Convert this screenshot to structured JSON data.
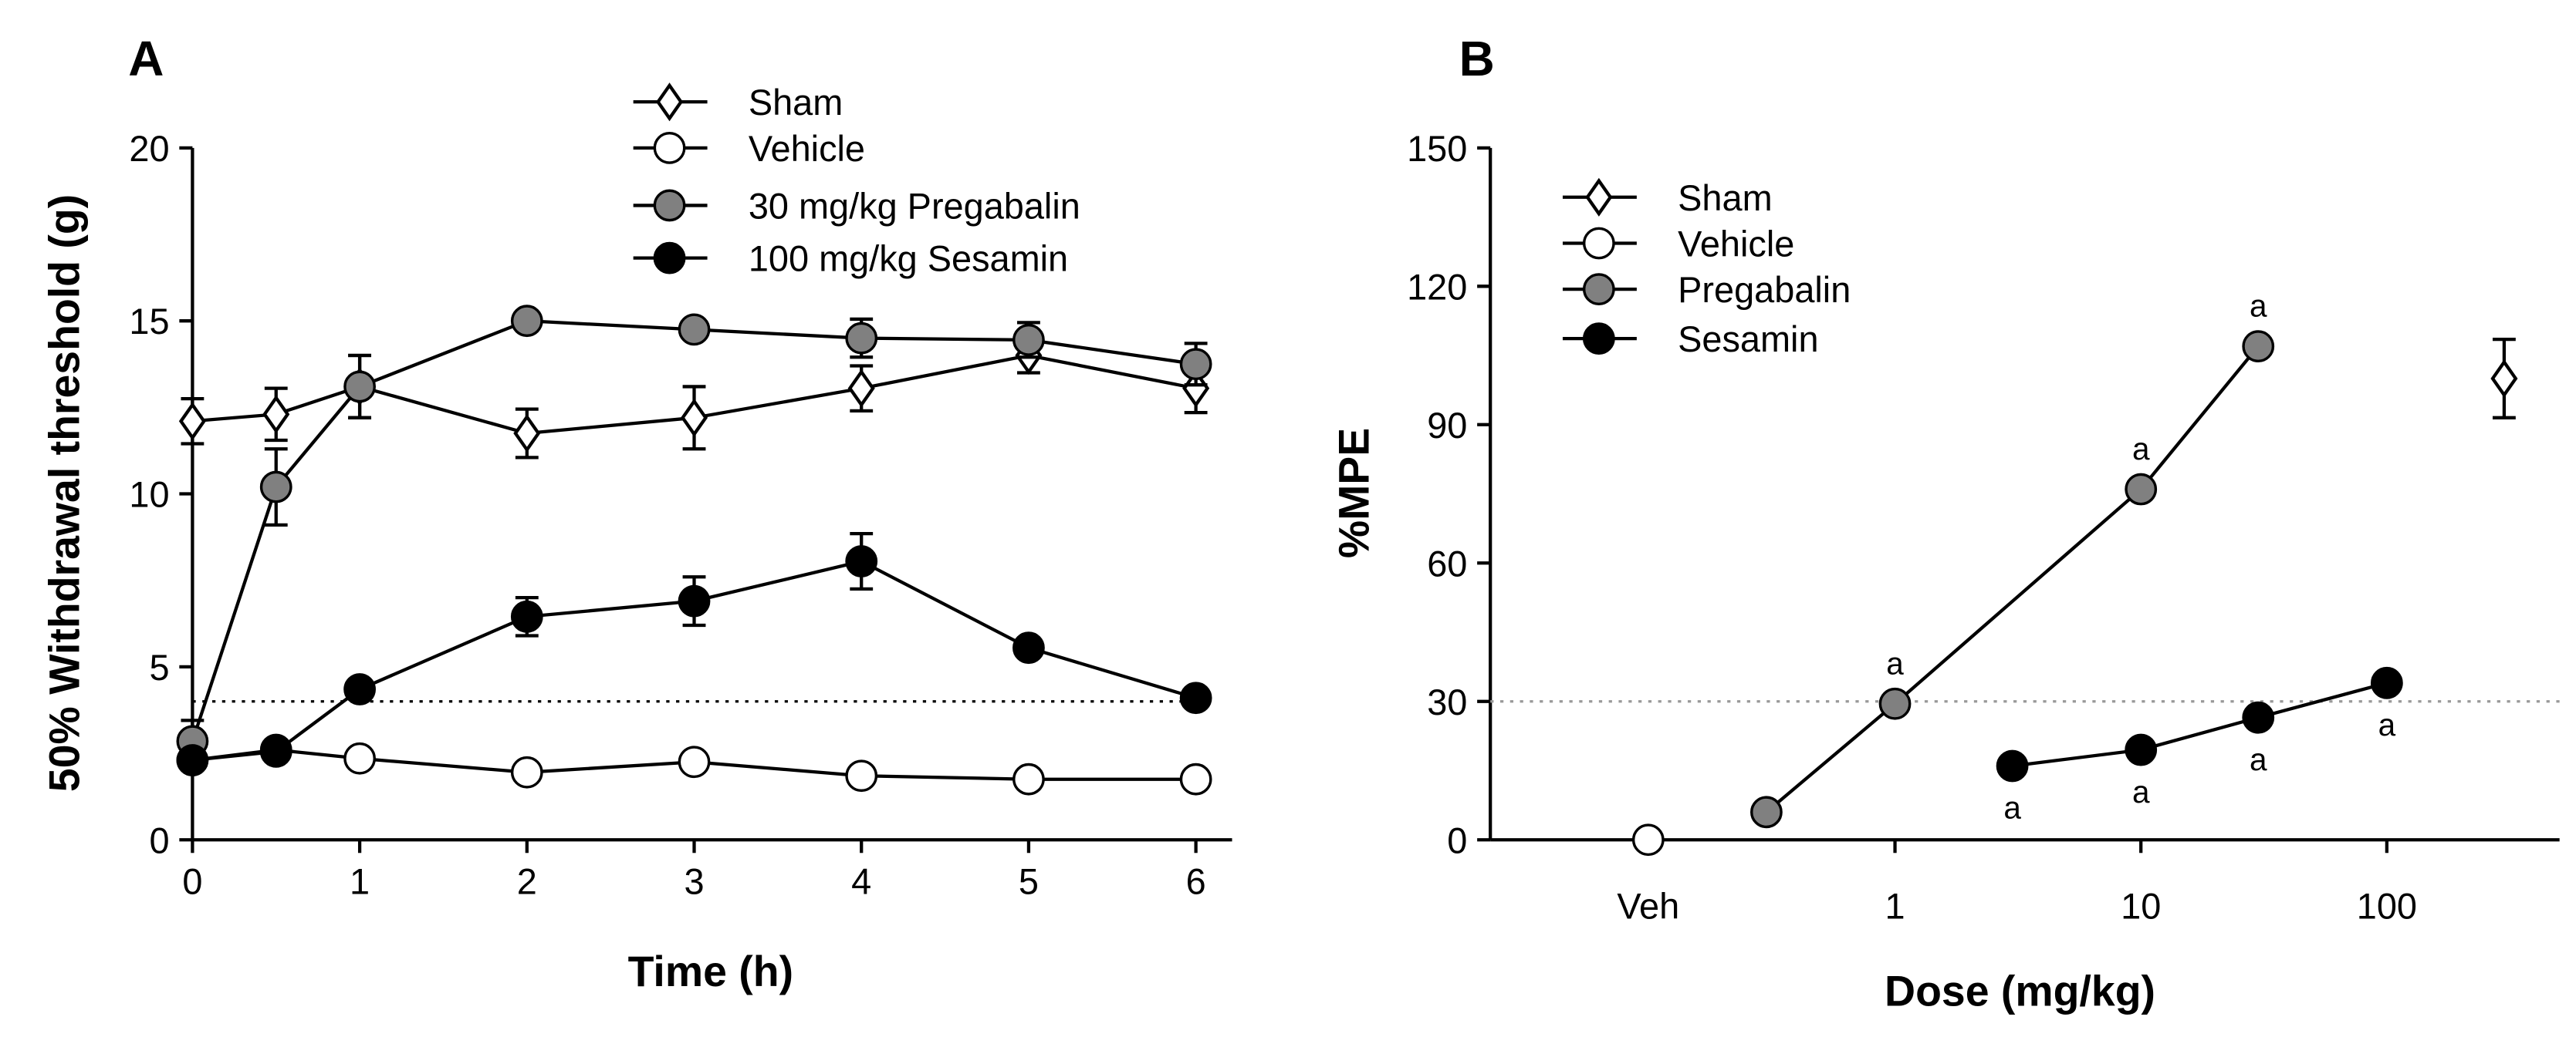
{
  "chart_data": [
    {
      "type": "line",
      "panel_label": "A",
      "xlabel": "Time (h)",
      "ylabel": "50% Withdrawal threshold (g)",
      "xlim": [
        0,
        6
      ],
      "ylim": [
        0,
        20
      ],
      "xticks": [
        0,
        1,
        2,
        3,
        4,
        5,
        6
      ],
      "yticks": [
        0,
        5,
        10,
        15,
        20
      ],
      "reference_line": 4,
      "legend_position": "top-right",
      "x": [
        0,
        0.5,
        1,
        2,
        3,
        4,
        5,
        6
      ],
      "series": [
        {
          "name": "Sham",
          "marker": "diamond",
          "fill": "#ffffff",
          "values": [
            12.1,
            12.3,
            13.1,
            11.75,
            12.2,
            13.05,
            14.0,
            13.05
          ],
          "errors": [
            0.65,
            0.75,
            0.9,
            0.7,
            0.9,
            0.65,
            0.5,
            0.7
          ]
        },
        {
          "name": "Vehicle",
          "marker": "circle",
          "fill": "#ffffff",
          "values": [
            2.3,
            2.6,
            2.35,
            1.95,
            2.25,
            1.85,
            1.75,
            1.75
          ],
          "errors": [
            0,
            0,
            0,
            0,
            0,
            0,
            0,
            0
          ]
        },
        {
          "name": "30 mg/kg Pregabalin",
          "marker": "circle",
          "fill": "#808080",
          "values": [
            2.85,
            10.2,
            13.1,
            15.0,
            14.75,
            14.5,
            14.45,
            13.75
          ],
          "errors": [
            0.6,
            1.1,
            0.9,
            0,
            0,
            0.55,
            0.5,
            0.6
          ]
        },
        {
          "name": "100 mg/kg Sesamin",
          "marker": "circle",
          "fill": "#000000",
          "values": [
            2.3,
            2.55,
            4.35,
            6.45,
            6.9,
            8.05,
            5.55,
            4.1
          ],
          "errors": [
            0,
            0,
            0,
            0.55,
            0.7,
            0.8,
            0,
            0
          ]
        }
      ]
    },
    {
      "type": "line",
      "panel_label": "B",
      "xlabel": "Dose (mg/kg)",
      "ylabel": "%MPE",
      "xscale": "log",
      "ylim": [
        0,
        150
      ],
      "xtick_labels": [
        "Veh",
        "1",
        "10",
        "100"
      ],
      "yticks": [
        0,
        30,
        60,
        90,
        120,
        150
      ],
      "reference_line": 30,
      "legend_position": "top-left",
      "significance_label": "a",
      "series": [
        {
          "name": "Sham",
          "marker": "diamond",
          "fill": "#ffffff",
          "x": [
            300
          ],
          "values": [
            100
          ],
          "errors": [
            8.5
          ],
          "annotated": [
            false
          ]
        },
        {
          "name": "Vehicle",
          "marker": "circle",
          "fill": "#ffffff",
          "x": [
            "Veh"
          ],
          "values": [
            0
          ],
          "errors": [
            0
          ],
          "annotated": [
            false
          ]
        },
        {
          "name": "Pregabalin",
          "marker": "circle",
          "fill": "#808080",
          "x": [
            0.3,
            1,
            10,
            30
          ],
          "values": [
            6,
            29.5,
            76,
            107
          ],
          "errors": [
            0,
            0,
            0,
            0
          ],
          "annotated": [
            false,
            true,
            true,
            true
          ],
          "annotation_side": "above"
        },
        {
          "name": "Sesamin",
          "marker": "circle",
          "fill": "#000000",
          "x": [
            3,
            10,
            30,
            100
          ],
          "values": [
            16,
            19.5,
            26.5,
            34
          ],
          "errors": [
            0,
            0,
            0,
            0
          ],
          "annotated": [
            true,
            true,
            true,
            true
          ],
          "annotation_side": "below"
        }
      ]
    }
  ]
}
